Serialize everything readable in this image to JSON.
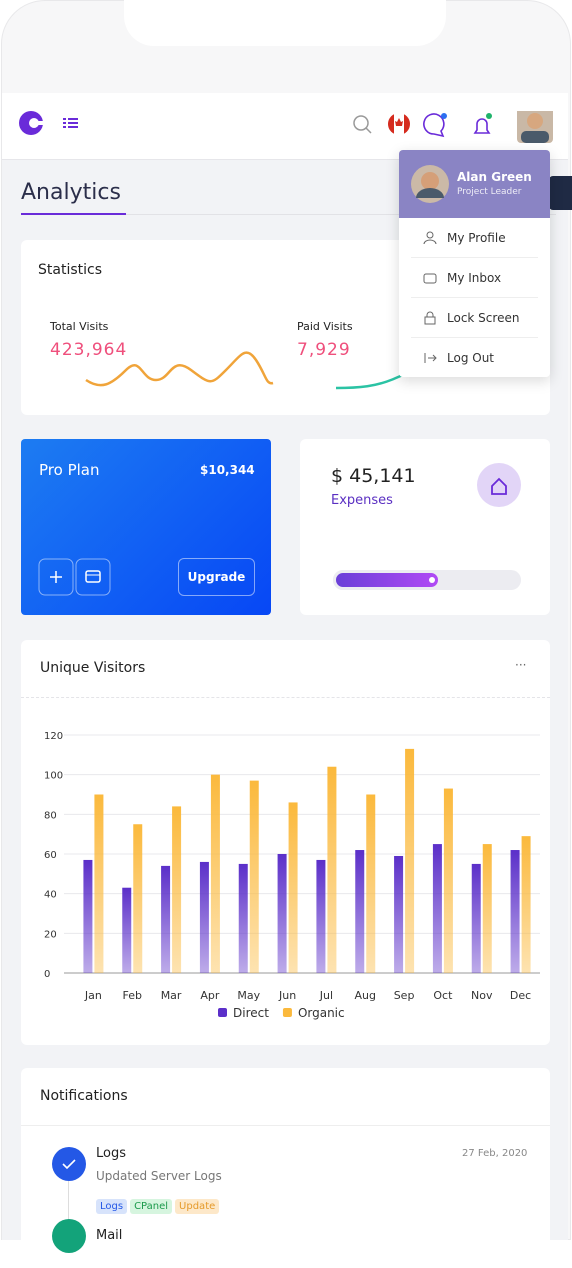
{
  "header": {
    "user_name": "Alan Green",
    "user_role": "Project Leader",
    "menu": [
      "My Profile",
      "My Inbox",
      "Lock Screen",
      "Log Out"
    ]
  },
  "page_title": "Analytics",
  "statistics": {
    "title": "Statistics",
    "items": [
      {
        "label": "Total Visits",
        "value": "423,964"
      },
      {
        "label": "Paid Visits",
        "value": "7,929"
      }
    ]
  },
  "pro_plan": {
    "title": "Pro Plan",
    "amount": "$10,344",
    "button": "Upgrade"
  },
  "expenses": {
    "amount": "$ 45,141",
    "label": "Expenses"
  },
  "chart_data": {
    "type": "bar",
    "title": "Unique Visitors",
    "categories": [
      "Jan",
      "Feb",
      "Mar",
      "Apr",
      "May",
      "Jun",
      "Jul",
      "Aug",
      "Sep",
      "Oct",
      "Nov",
      "Dec"
    ],
    "series": [
      {
        "name": "Direct",
        "color": "#5b2fc9",
        "values": [
          57,
          43,
          54,
          56,
          55,
          60,
          57,
          62,
          59,
          65,
          55,
          62
        ]
      },
      {
        "name": "Organic",
        "color": "#fbb93c",
        "values": [
          90,
          75,
          84,
          100,
          97,
          86,
          104,
          90,
          113,
          93,
          65,
          69
        ]
      }
    ],
    "ylim": [
      0,
      120
    ],
    "yticks": [
      0,
      20,
      40,
      60,
      80,
      100,
      120
    ],
    "grid": true,
    "legend": "bottom"
  },
  "notifications": {
    "title": "Notifications",
    "items": [
      {
        "title": "Logs",
        "text": "Updated Server Logs",
        "date": "27 Feb, 2020",
        "tags": [
          "Logs",
          "CPanel",
          "Update"
        ]
      },
      {
        "title": "Mail"
      }
    ]
  }
}
